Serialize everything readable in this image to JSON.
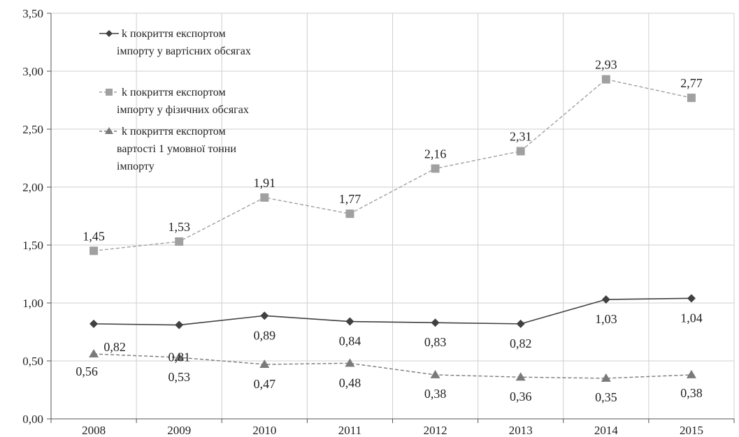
{
  "chart_data": {
    "type": "line",
    "title": "",
    "xlabel": "",
    "ylabel": "",
    "categories": [
      "2008",
      "2009",
      "2010",
      "2011",
      "2012",
      "2013",
      "2014",
      "2015"
    ],
    "ylim": [
      0,
      3.5
    ],
    "ytick_values": [
      0,
      0.5,
      1,
      1.5,
      2,
      2.5,
      3,
      3.5
    ],
    "ytick_labels": [
      "0,00",
      "0,50",
      "1,00",
      "1,50",
      "2,00",
      "2,50",
      "3,00",
      "3,50"
    ],
    "grid": true,
    "legend_position": "top-left",
    "series": [
      {
        "name_lines": [
          "k   покриття експортом",
          "імпорту у вартісних обсягах"
        ],
        "marker": "diamond",
        "line_style": "solid",
        "color": "#404040",
        "values": [
          0.82,
          0.81,
          0.89,
          0.84,
          0.83,
          0.82,
          1.03,
          1.04
        ],
        "labels": [
          "0,82",
          "0,81",
          "0,89",
          "0,84",
          "0,83",
          "0,82",
          "1,03",
          "1,04"
        ]
      },
      {
        "name_lines": [
          "k   покриття експортом",
          "імпорту у фізичних обсягах"
        ],
        "marker": "square",
        "line_style": "dashed",
        "color": "#a0a0a0",
        "values": [
          1.45,
          1.53,
          1.91,
          1.77,
          2.16,
          2.31,
          2.93,
          2.77
        ],
        "labels": [
          "1,45",
          "1,53",
          "1,91",
          "1,77",
          "2,16",
          "2,31",
          "2,93",
          "2,77"
        ]
      },
      {
        "name_lines": [
          "k   покриття експортом",
          "вартості 1 умовної тонни",
          "імпорту"
        ],
        "marker": "triangle",
        "line_style": "dashed",
        "color": "#7a7a7a",
        "values": [
          0.56,
          0.53,
          0.47,
          0.48,
          0.38,
          0.36,
          0.35,
          0.38
        ],
        "labels": [
          "0,56",
          "0,53",
          "0,47",
          "0,48",
          "0,38",
          "0,36",
          "0,35",
          "0,38"
        ]
      }
    ]
  }
}
